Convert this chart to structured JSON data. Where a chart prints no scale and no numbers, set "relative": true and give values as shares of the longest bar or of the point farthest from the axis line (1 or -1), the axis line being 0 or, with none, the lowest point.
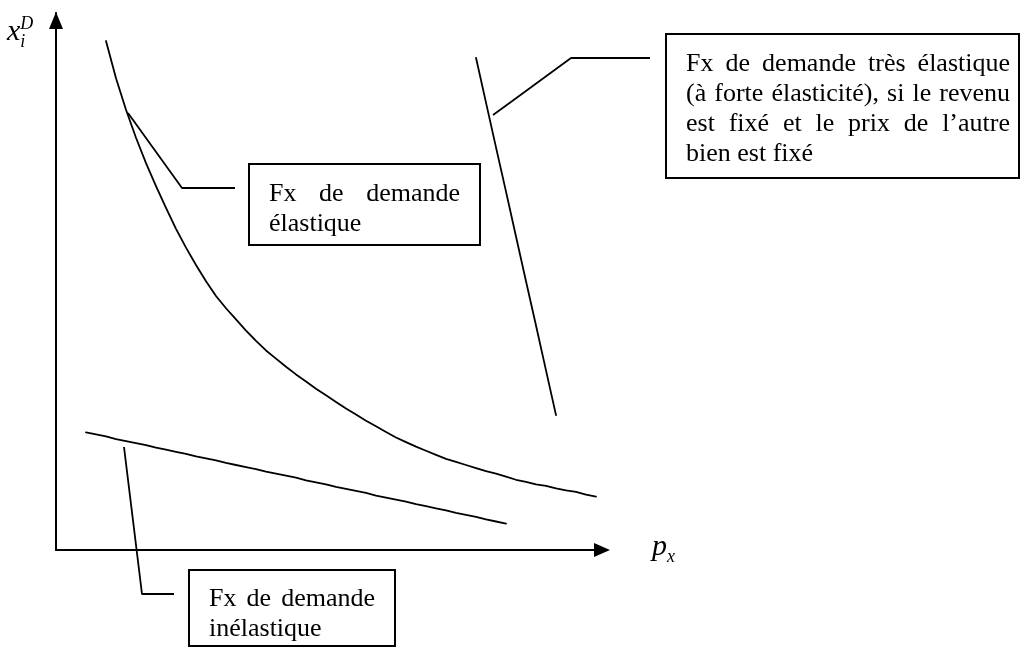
{
  "chart_data": {
    "type": "line",
    "relative": true,
    "marker": "none",
    "xlabel": "p$_{x}$",
    "ylabel": "x$_{i}$$^{D}$",
    "categories": [
      null,
      null,
      null,
      null,
      null,
      null,
      null,
      null,
      null,
      null,
      null,
      null,
      null,
      null,
      null,
      null,
      null,
      null,
      null,
      null,
      null,
      null,
      null,
      null,
      null,
      null,
      null,
      null,
      null,
      null,
      null,
      null,
      null,
      null,
      null,
      null,
      null,
      null,
      null,
      null,
      null,
      null,
      null,
      null,
      null,
      null,
      null,
      null,
      null,
      null,
      null,
      null,
      null,
      null,
      null,
      null
    ],
    "series": [
      {
        "color": "#000000",
        "values": [
          null,
          null,
          null,
          null,
          null,
          1,
          0.927,
          0.865,
          0.81,
          0.76,
          0.715,
          0.672,
          0.631,
          0.594,
          0.56,
          0.528,
          0.499,
          0.475,
          0.453,
          0.431,
          0.411,
          0.392,
          0.376,
          0.36,
          0.345,
          0.331,
          0.317,
          0.304,
          0.291,
          0.278,
          0.266,
          0.254,
          0.243,
          0.232,
          0.221,
          0.212,
          0.203,
          0.195,
          0.187,
          0.179,
          0.173,
          0.167,
          0.161,
          0.155,
          0.15,
          0.144,
          0.138,
          0.134,
          0.129,
          0.126,
          0.121,
          0.117,
          0.114,
          0.109,
          0.105,
          null
        ]
      },
      {
        "color": "#000000",
        "values": [
          null,
          null,
          null,
          null,
          null,
          null,
          null,
          null,
          null,
          null,
          null,
          null,
          null,
          null,
          null,
          null,
          null,
          null,
          null,
          null,
          null,
          null,
          null,
          null,
          null,
          null,
          null,
          null,
          null,
          null,
          null,
          null,
          null,
          null,
          null,
          null,
          null,
          null,
          null,
          null,
          null,
          null,
          0.967,
          0.879,
          0.791,
          0.704,
          0.616,
          0.528,
          0.441,
          0.353,
          0.265,
          null,
          null,
          null,
          null,
          null
        ]
      },
      {
        "color": "#000000",
        "values": [
          null,
          null,
          null,
          0.231,
          0.227,
          0.223,
          0.218,
          0.214,
          0.21,
          0.206,
          0.201,
          0.197,
          0.193,
          0.189,
          0.184,
          0.18,
          0.176,
          0.171,
          0.167,
          0.163,
          0.159,
          0.154,
          0.15,
          0.146,
          0.142,
          0.137,
          0.133,
          0.129,
          0.124,
          0.12,
          0.116,
          0.112,
          0.107,
          0.103,
          0.099,
          0.095,
          0.09,
          0.086,
          0.082,
          0.078,
          0.073,
          0.069,
          0.065,
          0.06,
          0.056,
          0.052,
          null,
          null,
          null,
          null,
          null,
          null,
          null,
          null,
          null,
          null
        ]
      }
    ],
    "annotations": [
      "Fx de demande très élastique (à forte élasticité), si le revenu est fixé et le prix de l’autre bien est fixé",
      "Fx de demande élastique",
      "Fx de demande inélastique"
    ]
  }
}
